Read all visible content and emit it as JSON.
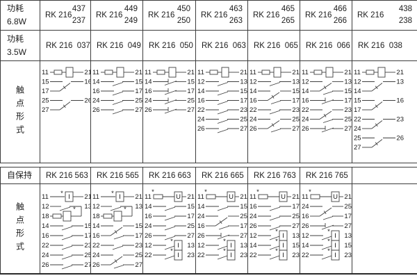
{
  "colors": {
    "background": "#ffffff",
    "grid_line": "#3c3c3c",
    "text": "#1d1d1d"
  },
  "table": {
    "power_68": {
      "label1": "功耗",
      "label2": "6.8W",
      "cells": [
        {
          "prefix": "RK 216",
          "upper": "437",
          "lower": "237"
        },
        {
          "prefix": "RK 216",
          "upper": "449",
          "lower": "249"
        },
        {
          "prefix": "RK 216",
          "upper": "450",
          "lower": "250"
        },
        {
          "prefix": "RK 216",
          "upper": "463",
          "lower": "263"
        },
        {
          "prefix": "RK 216",
          "upper": "465",
          "lower": "265"
        },
        {
          "prefix": "RK 216",
          "upper": "466",
          "lower": "266"
        },
        {
          "prefix": "RK 216",
          "upper": "438",
          "lower": "238"
        }
      ]
    },
    "power_35": {
      "label1": "功耗",
      "label2": "3.5W",
      "cells": [
        "RK 216  037",
        "RK 216  049",
        "RK 216  050",
        "RK 216  063",
        "RK 216  065",
        "RK 216  066",
        "RK 216  038"
      ]
    },
    "contact_top": {
      "label": "触点形式",
      "diagrams": [
        [
          [
            "coil",
            "11",
            "21"
          ],
          [
            "co",
            "15",
            "16",
            "17"
          ],
          [
            "co",
            "25",
            "26",
            "27"
          ]
        ],
        [
          [
            "coil",
            "11",
            "21"
          ],
          [
            "make",
            "14",
            "15"
          ],
          [
            "make",
            "16",
            "17"
          ],
          [
            "make",
            "24",
            "25"
          ],
          [
            "make",
            "26",
            "27"
          ]
        ],
        [
          [
            "coil",
            "11",
            "21"
          ],
          [
            "break",
            "14",
            "15"
          ],
          [
            "break",
            "16",
            "17"
          ],
          [
            "break",
            "24",
            "25"
          ],
          [
            "break",
            "26",
            "27"
          ]
        ],
        [
          [
            "coil",
            "11",
            "21"
          ],
          [
            "make",
            "12",
            "13"
          ],
          [
            "make",
            "14",
            "15"
          ],
          [
            "make",
            "16",
            "17"
          ],
          [
            "make",
            "22",
            "23"
          ],
          [
            "make",
            "24",
            "25"
          ],
          [
            "make",
            "26",
            "27"
          ]
        ],
        [
          [
            "coil",
            "11",
            "21"
          ],
          [
            "make",
            "12",
            "13"
          ],
          [
            "co2",
            "14",
            "15",
            "16",
            "17"
          ],
          [
            "make",
            "22",
            "23"
          ],
          [
            "co2",
            "24",
            "25",
            "26",
            "27"
          ]
        ],
        [
          [
            "coil",
            "11",
            "21"
          ],
          [
            "co2",
            "12",
            "13",
            "14",
            "15"
          ],
          [
            "break",
            "16",
            "17"
          ],
          [
            "co2",
            "22",
            "23",
            "24",
            "25"
          ],
          [
            "break",
            "26",
            "27"
          ]
        ],
        [
          [
            "coil",
            "11",
            "21"
          ],
          [
            "co",
            "12",
            "13",
            "14"
          ],
          [
            "co",
            "15",
            "16",
            "17"
          ],
          [
            "co",
            "22",
            "23",
            "24"
          ],
          [
            "co",
            "25",
            "26",
            "27"
          ]
        ]
      ]
    },
    "latching": {
      "label": "自保持",
      "cells": [
        "RK 216 563",
        "RK 216 565",
        "RK 216 663",
        "RK 216 665",
        "RK 216 763",
        "RK 216 765"
      ]
    },
    "contact_bottom": {
      "label": "触点形式",
      "diagrams": [
        [
          [
            "coil_i",
            "11",
            "21"
          ],
          [
            "latch",
            "12",
            "13",
            "18"
          ],
          [
            "make",
            "14",
            "15"
          ],
          [
            "make",
            "16",
            "17"
          ],
          [
            "make",
            "22",
            "23"
          ],
          [
            "make",
            "24",
            "25"
          ],
          [
            "make",
            "26",
            "27"
          ]
        ],
        [
          [
            "coil_i",
            "11",
            "21"
          ],
          [
            "latch",
            "12",
            "13",
            "18"
          ],
          [
            "co2",
            "14",
            "15",
            "16",
            "17"
          ],
          [
            "make",
            "22",
            "23"
          ],
          [
            "co2",
            "24",
            "25",
            "26",
            "27"
          ]
        ],
        [
          [
            "coil_u",
            "11",
            "21"
          ],
          [
            "make",
            "14",
            "15"
          ],
          [
            "make",
            "16",
            "17"
          ],
          [
            "make",
            "24",
            "25"
          ],
          [
            "make",
            "26",
            "27"
          ],
          [
            "latchmake",
            "12",
            "13"
          ],
          [
            "latchmake",
            "22",
            "23"
          ]
        ],
        [
          [
            "coil_u",
            "11",
            "21"
          ],
          [
            "make",
            "14",
            "15"
          ],
          [
            "co2",
            "24",
            "25",
            "16",
            "17"
          ],
          [
            "break",
            "26",
            "27"
          ],
          [
            "latchmake",
            "12",
            "13"
          ],
          [
            "latchmake",
            "22",
            "23"
          ]
        ],
        [
          [
            "coil_u",
            "11",
            "21"
          ],
          [
            "make",
            "16",
            "17"
          ],
          [
            "make",
            "24",
            "25"
          ],
          [
            "make",
            "26",
            "27"
          ],
          [
            "latchmake",
            "12",
            "13"
          ],
          [
            "latchmake",
            "14",
            "15"
          ],
          [
            "latchmake",
            "22",
            "23"
          ]
        ],
        [
          [
            "coil_u",
            "11",
            "21"
          ],
          [
            "co2",
            "24",
            "25",
            "16",
            "17"
          ],
          [
            "break",
            "26",
            "27"
          ],
          [
            "latchmake",
            "12",
            "13"
          ],
          [
            "latchmake",
            "14",
            "15"
          ],
          [
            "latchmake",
            "22",
            "23"
          ]
        ],
        []
      ]
    }
  }
}
